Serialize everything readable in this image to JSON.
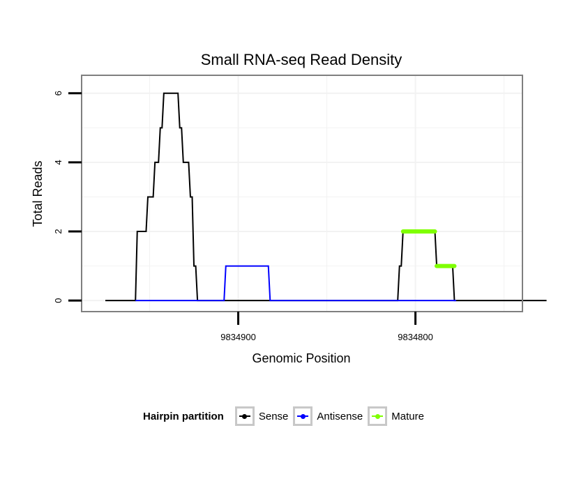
{
  "chart_data": {
    "type": "line",
    "title": "Small RNA-seq Read Density",
    "xlabel": "Genomic Position",
    "ylabel": "Total Reads",
    "x_reversed": true,
    "xlim": [
      9834988,
      9834740
    ],
    "ylim": [
      -0.3,
      6.5
    ],
    "x_ticks": [
      9834900,
      9834800
    ],
    "x_tick_labels": [
      "9834900",
      "9834800"
    ],
    "y_ticks": [
      0,
      2,
      4,
      6
    ],
    "y_tick_labels": [
      "0",
      "2",
      "4",
      "6"
    ],
    "legend_title": "Hairpin partition",
    "legend_position": "bottom",
    "colors": {
      "Sense": "#000000",
      "Antisense": "#0000ff",
      "Mature": "#7fff00"
    },
    "series": [
      {
        "name": "Sense",
        "color": "#000000",
        "width": 2,
        "step": true,
        "x": [
          9834975,
          9834958,
          9834957,
          9834952,
          9834951,
          9834948,
          9834947,
          9834945,
          9834944,
          9834943,
          9834942,
          9834941,
          9834940,
          9834939,
          9834938,
          9834937,
          9834936,
          9834934,
          9834933,
          9834932,
          9834931,
          9834930,
          9834929,
          9834928,
          9834927,
          9834926,
          9834925,
          9834924,
          9834923,
          9834922,
          9834921,
          9834920,
          9834919,
          9834810,
          9834809,
          9834808,
          9834807,
          9834789,
          9834788,
          9834780,
          9834779,
          9834778,
          9834777,
          9834726
        ],
        "y": [
          0,
          0,
          2,
          2,
          3,
          3,
          4,
          4,
          5,
          5,
          6,
          6,
          6,
          6,
          6,
          6,
          6,
          6,
          5,
          5,
          4,
          4,
          4,
          4,
          3,
          3,
          1,
          1,
          0,
          0,
          0,
          0,
          0,
          0,
          1,
          1,
          2,
          2,
          1,
          1,
          1,
          0,
          0,
          0
        ]
      },
      {
        "name": "Antisense",
        "color": "#0000ff",
        "width": 2,
        "step": true,
        "x": [
          9834958,
          9834908,
          9834907,
          9834883,
          9834882,
          9834777
        ],
        "y": [
          0,
          0,
          1,
          1,
          0,
          0
        ]
      },
      {
        "name": "Mature",
        "color": "#7fff00",
        "width": 6,
        "step": false,
        "segments": [
          {
            "x": [
              9834807,
              9834789
            ],
            "y": [
              2,
              2
            ]
          },
          {
            "x": [
              9834788,
              9834778
            ],
            "y": [
              1,
              1
            ]
          }
        ]
      }
    ]
  }
}
